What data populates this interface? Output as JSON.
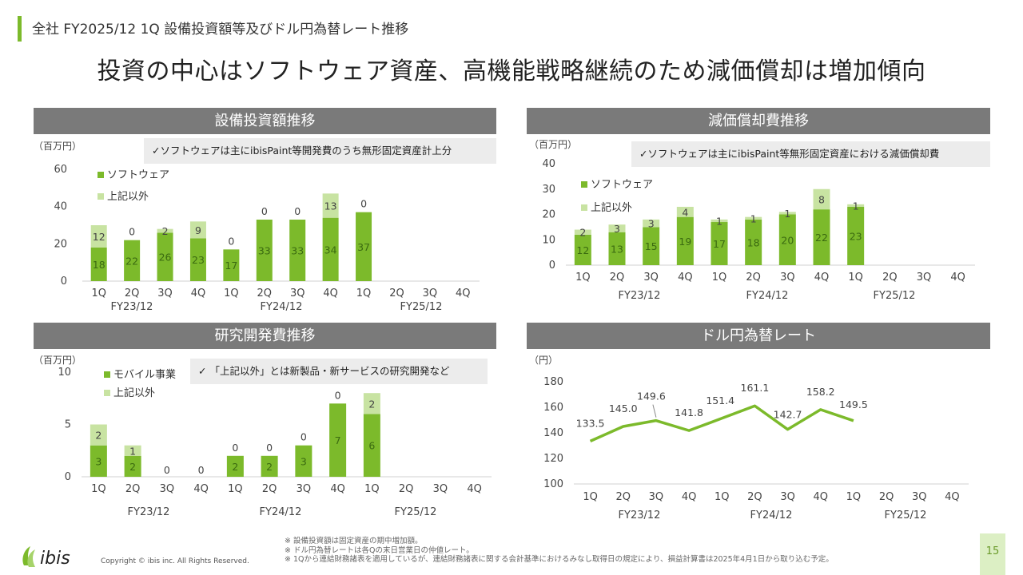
{
  "header": {
    "section": "全社 FY2025/12 1Q 設備投資額等及びドル円為替レート推移"
  },
  "headline": "投資の中心はソフトウェア資産、高機能戦略継続のため減価償却は増加傾向",
  "colors": {
    "dark": "#7cba2b",
    "light": "#c8e3a2",
    "title_bg": "#7a7a7a",
    "note_bg": "#ececec"
  },
  "capex": {
    "title": "設備投資額推移",
    "unit": "（百万円）",
    "note": "✓ソフトウェアは主にibisPaint等開発費のうち無形固定資産計上分"
  },
  "depr": {
    "title": "減価償却費推移",
    "unit": "（百万円）",
    "note": "✓ソフトウェアは主にibisPaint等無形固定資産における減価償却費"
  },
  "rnd": {
    "title": "研究開発費推移",
    "unit": "（百万円）",
    "note": "✓ 「上記以外」とは新製品・新サービスの研究開発など"
  },
  "fx": {
    "title": "ドル円為替レート",
    "unit": "（円）"
  },
  "chart_data": [
    {
      "type": "bar",
      "title": "設備投資額推移",
      "stacked": true,
      "categories": [
        "1Q",
        "2Q",
        "3Q",
        "4Q",
        "1Q",
        "2Q",
        "3Q",
        "4Q",
        "1Q",
        "2Q",
        "3Q",
        "4Q"
      ],
      "groups": [
        "FY23/12",
        "FY24/12",
        "FY25/12"
      ],
      "ylim": [
        0,
        60
      ],
      "yticks": [
        0,
        20,
        40,
        60
      ],
      "series": [
        {
          "name": "ソフトウェア",
          "values": [
            18,
            22,
            26,
            23,
            17,
            33,
            33,
            34,
            37,
            null,
            null,
            null
          ]
        },
        {
          "name": "上記以外",
          "values": [
            12,
            0,
            2,
            9,
            0,
            0,
            0,
            13,
            0,
            null,
            null,
            null
          ]
        }
      ]
    },
    {
      "type": "bar",
      "title": "減価償却費推移",
      "stacked": true,
      "categories": [
        "1Q",
        "2Q",
        "3Q",
        "4Q",
        "1Q",
        "2Q",
        "3Q",
        "4Q",
        "1Q",
        "2Q",
        "3Q",
        "4Q"
      ],
      "groups": [
        "FY23/12",
        "FY24/12",
        "FY25/12"
      ],
      "ylim": [
        0,
        40
      ],
      "yticks": [
        0,
        10,
        20,
        30,
        40
      ],
      "series": [
        {
          "name": "ソフトウェア",
          "values": [
            12,
            13,
            15,
            19,
            17,
            18,
            20,
            22,
            23,
            null,
            null,
            null
          ]
        },
        {
          "name": "上記以外",
          "values": [
            2,
            3,
            3,
            4,
            1,
            1,
            1,
            8,
            1,
            null,
            null,
            null
          ]
        }
      ]
    },
    {
      "type": "bar",
      "title": "研究開発費推移",
      "stacked": true,
      "categories": [
        "1Q",
        "2Q",
        "3Q",
        "4Q",
        "1Q",
        "2Q",
        "3Q",
        "4Q",
        "1Q",
        "2Q",
        "3Q",
        "4Q"
      ],
      "groups": [
        "FY23/12",
        "FY24/12",
        "FY25/12"
      ],
      "ylim": [
        0,
        10
      ],
      "yticks": [
        0,
        5,
        10
      ],
      "series": [
        {
          "name": "モバイル事業",
          "values": [
            3,
            2,
            0,
            0,
            2,
            2,
            3,
            7,
            6,
            null,
            null,
            null
          ]
        },
        {
          "name": "上記以外",
          "values": [
            2,
            1,
            0,
            0,
            0,
            0,
            0,
            0,
            2,
            null,
            null,
            null
          ]
        }
      ]
    },
    {
      "type": "line",
      "title": "ドル円為替レート",
      "categories": [
        "1Q",
        "2Q",
        "3Q",
        "4Q",
        "1Q",
        "2Q",
        "3Q",
        "4Q",
        "1Q",
        "2Q",
        "3Q",
        "4Q"
      ],
      "groups": [
        "FY23/12",
        "FY24/12",
        "FY25/12"
      ],
      "ylim": [
        100,
        180
      ],
      "yticks": [
        100,
        120,
        140,
        160,
        180
      ],
      "series": [
        {
          "values": [
            133.5,
            145.0,
            149.6,
            141.8,
            151.4,
            161.1,
            142.7,
            158.2,
            149.5,
            null,
            null,
            null
          ]
        }
      ]
    }
  ],
  "footnotes": [
    "※ 設備投資額は固定資産の期中増加額。",
    "※ ドル円為替レートは各Qの末日営業日の仲値レート。",
    "※ 1Qから連結財務諸表を適用しているが、連結財務諸表に関する会計基準におけるみなし取得日の規定により、損益計算書は2025年4月1日から取り込む予定。"
  ],
  "copyright": "Copyright © ibis inc. All Rights Reserved.",
  "logo_text": "ibis",
  "page_number": "15"
}
